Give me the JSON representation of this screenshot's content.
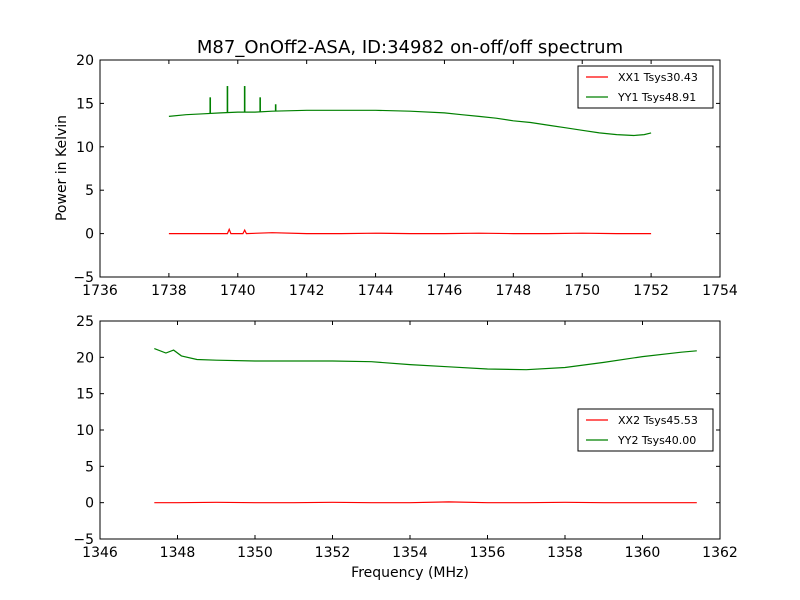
{
  "figure": {
    "title": "M87_OnOff2-ASA, ID:34982 on-off/off spectrum",
    "ylabel": "Power in Kelvin",
    "xlabel": "Frequency (MHz)"
  },
  "colors": {
    "red": "#ff0000",
    "green": "#008000",
    "axes": "#000000"
  },
  "chart_data": [
    {
      "type": "line",
      "title": "M87_OnOff2-ASA, ID:34982 on-off/off spectrum",
      "xlabel": "",
      "ylabel": "Power in Kelvin",
      "xlim": [
        1736,
        1754
      ],
      "ylim": [
        -5,
        20
      ],
      "xticks": [
        1736,
        1738,
        1740,
        1742,
        1744,
        1746,
        1748,
        1750,
        1752,
        1754
      ],
      "yticks": [
        -5,
        0,
        5,
        10,
        15,
        20
      ],
      "grid": false,
      "legend_position": "upper right",
      "series": [
        {
          "name": "XX1 Tsys30.43",
          "color": "#ff0000",
          "x": [
            1738.0,
            1739.0,
            1739.7,
            1739.75,
            1739.8,
            1740.0,
            1740.15,
            1740.2,
            1740.25,
            1741.0,
            1742.0,
            1743.0,
            1744.0,
            1745.0,
            1746.0,
            1747.0,
            1748.0,
            1749.0,
            1750.0,
            1751.0,
            1752.0
          ],
          "y": [
            0.0,
            0.0,
            0.0,
            0.5,
            0.0,
            0.0,
            0.0,
            0.4,
            0.0,
            0.1,
            0.0,
            0.0,
            0.05,
            0.0,
            0.0,
            0.05,
            0.0,
            0.0,
            0.05,
            0.0,
            0.0
          ]
        },
        {
          "name": "YY1 Tsys48.91",
          "color": "#008000",
          "x": [
            1738.0,
            1738.5,
            1739.0,
            1739.5,
            1740.0,
            1740.5,
            1741.0,
            1742.0,
            1743.0,
            1744.0,
            1745.0,
            1746.0,
            1746.5,
            1747.0,
            1747.5,
            1748.0,
            1748.5,
            1749.0,
            1749.5,
            1750.0,
            1750.5,
            1751.0,
            1751.5,
            1751.8,
            1752.0
          ],
          "y": [
            13.5,
            13.7,
            13.8,
            13.9,
            14.0,
            14.0,
            14.1,
            14.2,
            14.2,
            14.2,
            14.1,
            13.9,
            13.7,
            13.5,
            13.3,
            13.0,
            12.8,
            12.5,
            12.2,
            11.9,
            11.6,
            11.4,
            11.3,
            11.4,
            11.6
          ]
        }
      ],
      "spikes": [
        {
          "x": 1739.2,
          "y": 15.7
        },
        {
          "x": 1739.7,
          "y": 17.0
        },
        {
          "x": 1740.2,
          "y": 17.0
        },
        {
          "x": 1740.65,
          "y": 15.7
        },
        {
          "x": 1741.1,
          "y": 14.9
        }
      ]
    },
    {
      "type": "line",
      "title": "",
      "xlabel": "Frequency (MHz)",
      "ylabel": "",
      "xlim": [
        1346,
        1362
      ],
      "ylim": [
        -5,
        25
      ],
      "xticks": [
        1346,
        1348,
        1350,
        1352,
        1354,
        1356,
        1358,
        1360,
        1362
      ],
      "yticks": [
        -5,
        0,
        5,
        10,
        15,
        20,
        25
      ],
      "grid": false,
      "legend_position": "center right",
      "series": [
        {
          "name": "XX2 Tsys45.53",
          "color": "#ff0000",
          "x": [
            1347.4,
            1348.0,
            1349.0,
            1350.0,
            1351.0,
            1352.0,
            1353.0,
            1354.0,
            1355.0,
            1356.0,
            1357.0,
            1358.0,
            1359.0,
            1360.0,
            1361.0,
            1361.4
          ],
          "y": [
            0.0,
            0.0,
            0.05,
            0.0,
            0.0,
            0.05,
            0.0,
            0.0,
            0.1,
            0.0,
            0.0,
            0.05,
            0.0,
            0.0,
            0.0,
            0.0
          ]
        },
        {
          "name": "YY2 Tsys40.00",
          "color": "#008000",
          "x": [
            1347.4,
            1347.7,
            1347.9,
            1348.1,
            1348.5,
            1349.0,
            1350.0,
            1351.0,
            1352.0,
            1353.0,
            1354.0,
            1355.0,
            1356.0,
            1357.0,
            1358.0,
            1359.0,
            1360.0,
            1361.0,
            1361.4
          ],
          "y": [
            21.2,
            20.6,
            21.0,
            20.2,
            19.7,
            19.6,
            19.5,
            19.5,
            19.5,
            19.4,
            19.0,
            18.7,
            18.4,
            18.3,
            18.6,
            19.3,
            20.1,
            20.7,
            20.9
          ]
        }
      ]
    }
  ]
}
